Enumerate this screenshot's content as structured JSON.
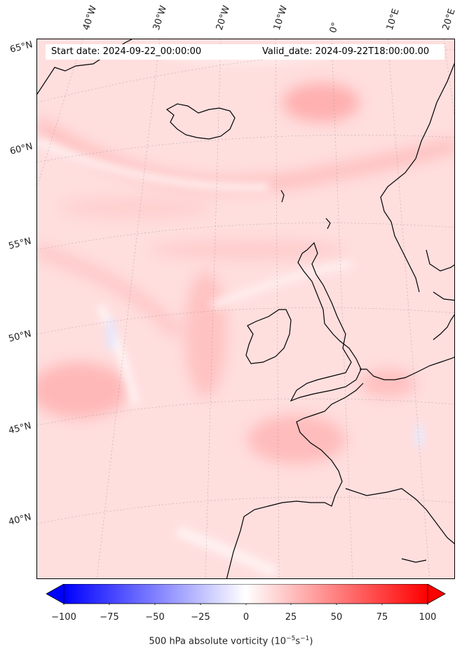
{
  "header": {
    "start_date": "Start date: 2024-09-22_00:00:00",
    "valid_date": "Valid_date: 2024-09-22T18:00:00.00"
  },
  "longitude_labels": [
    "40°W",
    "30°W",
    "20°W",
    "10°W",
    "0°",
    "10°E",
    "20°E"
  ],
  "latitude_labels": [
    "65°N",
    "60°N",
    "55°N",
    "50°N",
    "45°N",
    "40°N"
  ],
  "colorbar": {
    "ticks": [
      "−100",
      "−75",
      "−50",
      "−25",
      "0",
      "25",
      "50",
      "75",
      "100"
    ],
    "range": [
      -100,
      100
    ],
    "colormap": "bwr",
    "extend": "both",
    "label_main": "500 hPa absolute vorticity (10",
    "label_exp1": "−5",
    "label_mid": "s",
    "label_exp2": "−1",
    "label_end": ")"
  },
  "colors": {
    "low": "#0000ff",
    "mid": "#ffffff",
    "high": "#ff0000",
    "coast": "#000000"
  }
}
